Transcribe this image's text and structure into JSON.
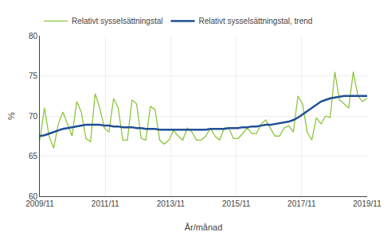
{
  "chart_data": {
    "type": "line",
    "xlabel": "År/månad",
    "ylabel": "%",
    "x": [
      0,
      1.6901,
      3.3803,
      5.0704,
      6.7606,
      8.4507,
      10.1408,
      11.831,
      13.5211,
      15.2113,
      16.9014,
      18.5915,
      20.2817,
      21.9718,
      23.662,
      25.3521,
      27.0423,
      28.7324,
      30.4225,
      32.1127,
      33.8028,
      35.493,
      37.1831,
      38.8732,
      40.5634,
      42.2535,
      43.9437,
      45.6338,
      47.3239,
      49.0141,
      50.7042,
      52.3944,
      54.0845,
      55.7746,
      57.4648,
      59.1549,
      60.8451,
      62.5352,
      64.2254,
      65.9155,
      67.6056,
      69.2958,
      70.9859,
      72.6761,
      74.3662,
      76.0563,
      77.7465,
      79.4366,
      81.1268,
      82.8169,
      84.507,
      86.1972,
      87.8873,
      89.5775,
      91.2676,
      92.9577,
      94.6479,
      96.338,
      98.0282,
      99.7183,
      101.4085,
      103.0986,
      104.7887,
      106.4789,
      108.169,
      109.8592,
      111.5493,
      113.2394,
      114.9296,
      116.6197,
      118.3099,
      120
    ],
    "series": [
      {
        "name": "Relativt sysselsättningstal",
        "color": "#8dc63f",
        "values": [
          67.0,
          71.0,
          67.5,
          66.0,
          69.0,
          70.5,
          69.0,
          67.5,
          71.8,
          70.5,
          67.2,
          66.8,
          72.8,
          71.0,
          68.5,
          68.0,
          72.2,
          71.0,
          67.0,
          67.0,
          72.0,
          71.5,
          67.2,
          67.0,
          71.2,
          70.8,
          67.0,
          66.5,
          67.0,
          68.2,
          67.5,
          67.0,
          68.5,
          68.0,
          67.0,
          67.0,
          67.5,
          68.5,
          67.5,
          67.0,
          68.5,
          68.5,
          67.2,
          67.2,
          67.8,
          68.5,
          67.8,
          67.8,
          69.0,
          69.5,
          68.5,
          67.5,
          67.5,
          68.5,
          68.8,
          68.0,
          72.5,
          71.5,
          68.0,
          67.0,
          69.8,
          69.0,
          70.0,
          69.8,
          75.5,
          72.0,
          71.5,
          71.0,
          75.5,
          72.5,
          71.8,
          72.2
        ]
      },
      {
        "name": "Relativt sysselsättningstal, trend",
        "color": "#1f4e96",
        "values": [
          67.5,
          67.6,
          67.8,
          68.0,
          68.2,
          68.4,
          68.5,
          68.6,
          68.7,
          68.8,
          68.9,
          68.9,
          68.9,
          68.9,
          68.8,
          68.8,
          68.7,
          68.7,
          68.6,
          68.6,
          68.6,
          68.5,
          68.5,
          68.4,
          68.4,
          68.4,
          68.3,
          68.3,
          68.3,
          68.3,
          68.3,
          68.3,
          68.3,
          68.3,
          68.3,
          68.3,
          68.3,
          68.4,
          68.4,
          68.4,
          68.4,
          68.5,
          68.5,
          68.5,
          68.6,
          68.6,
          68.7,
          68.7,
          68.8,
          68.9,
          68.9,
          69.0,
          69.1,
          69.2,
          69.3,
          69.5,
          69.8,
          70.2,
          70.6,
          71.0,
          71.4,
          71.8,
          72.0,
          72.2,
          72.3,
          72.4,
          72.5,
          72.5,
          72.5,
          72.5,
          72.5,
          72.5
        ]
      }
    ],
    "xlim": [
      0,
      120
    ],
    "xticks": [
      {
        "value": 0,
        "label": "2009/11"
      },
      {
        "value": 24,
        "label": "2011/11"
      },
      {
        "value": 48,
        "label": "2013/11"
      },
      {
        "value": 72,
        "label": "2015/11"
      },
      {
        "value": 96,
        "label": "2017/11"
      },
      {
        "value": 120,
        "label": "2019/11"
      }
    ],
    "ylim": [
      60,
      80
    ],
    "yticks": [
      60,
      65,
      70,
      75,
      80
    ],
    "grid": true,
    "legend": "top"
  }
}
